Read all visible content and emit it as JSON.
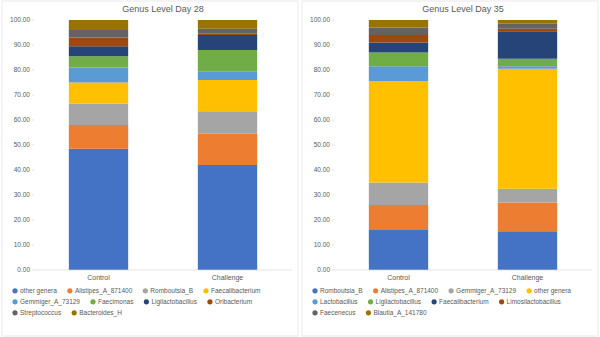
{
  "chart_data": [
    {
      "type": "bar",
      "title": "Genus Level Day 28",
      "stacked": true,
      "grid": false,
      "legend": "bottom",
      "categories": [
        "Control",
        "Challenge"
      ],
      "ylim": [
        0,
        100
      ],
      "yticks": [
        {
          "value": 0,
          "label": "0.00"
        },
        {
          "value": 10,
          "label": "10.00"
        },
        {
          "value": 20,
          "label": "20.00"
        },
        {
          "value": 30,
          "label": "30.00"
        },
        {
          "value": 40,
          "label": "40.00"
        },
        {
          "value": 50,
          "label": "50.00"
        },
        {
          "value": 60,
          "label": "60.00"
        },
        {
          "value": 70,
          "label": "70.00"
        },
        {
          "value": 80,
          "label": "80.00"
        },
        {
          "value": 90,
          "label": "90.00"
        },
        {
          "value": 100,
          "label": "100.00"
        }
      ],
      "series": [
        {
          "name": "other genera",
          "color": "#4472c4",
          "values": [
            48.5,
            42
          ]
        },
        {
          "name": "Alistipes_A_871400",
          "color": "#ed7d31",
          "values": [
            9.5,
            12.5
          ]
        },
        {
          "name": "Romboutsia_B",
          "color": "#a5a5a5",
          "values": [
            8.5,
            9
          ]
        },
        {
          "name": "Faecalibacterium",
          "color": "#ffc000",
          "values": [
            8.5,
            12.5
          ]
        },
        {
          "name": "Gemmiger_A_73129",
          "color": "#5b9bd5",
          "values": [
            6,
            3.5
          ]
        },
        {
          "name": "Faecimonas",
          "color": "#70ad47",
          "values": [
            4.5,
            8.5
          ]
        },
        {
          "name": "Ligilactobacillus",
          "color": "#264478",
          "values": [
            4,
            6
          ]
        },
        {
          "name": "Oribacterium",
          "color": "#9e480e",
          "values": [
            3.5,
            0.5
          ]
        },
        {
          "name": "Streptococcus",
          "color": "#636363",
          "values": [
            3,
            2
          ]
        },
        {
          "name": "Bacteroides_H",
          "color": "#997300",
          "values": [
            4,
            3.5
          ]
        }
      ]
    },
    {
      "type": "bar",
      "title": "Genus Level Day 35",
      "stacked": true,
      "grid": false,
      "legend": "bottom",
      "categories": [
        "Control",
        "Challenge"
      ],
      "ylim": [
        0,
        100
      ],
      "yticks": [
        {
          "value": 0,
          "label": "0.00"
        },
        {
          "value": 10,
          "label": "10.00"
        },
        {
          "value": 20,
          "label": "20.00"
        },
        {
          "value": 30,
          "label": "30.00"
        },
        {
          "value": 40,
          "label": "40.00"
        },
        {
          "value": 50,
          "label": "50.00"
        },
        {
          "value": 60,
          "label": "60.00"
        },
        {
          "value": 70,
          "label": "70.00"
        },
        {
          "value": 80,
          "label": "80.00"
        },
        {
          "value": 90,
          "label": "90.00"
        },
        {
          "value": 100,
          "label": "100.00"
        }
      ],
      "series": [
        {
          "name": "Romboutsia_B",
          "color": "#4472c4",
          "values": [
            16,
            15.5
          ]
        },
        {
          "name": "Alistipes_A_871400",
          "color": "#ed7d31",
          "values": [
            10,
            11.5
          ]
        },
        {
          "name": "Gemmiger_A_73129",
          "color": "#a5a5a5",
          "values": [
            9,
            5.5
          ]
        },
        {
          "name": "other genera",
          "color": "#ffc000",
          "values": [
            40.5,
            48
          ]
        },
        {
          "name": "Lactobacillus",
          "color": "#5b9bd5",
          "values": [
            6,
            1
          ]
        },
        {
          "name": "Ligilactobacillus",
          "color": "#70ad47",
          "values": [
            5.5,
            3
          ]
        },
        {
          "name": "Faecalibacterium",
          "color": "#264478",
          "values": [
            4,
            11
          ]
        },
        {
          "name": "Limosilactobacillus",
          "color": "#9e480e",
          "values": [
            3,
            1
          ]
        },
        {
          "name": "Faecenecus",
          "color": "#636363",
          "values": [
            3,
            2
          ]
        },
        {
          "name": "Blautia_A_141780",
          "color": "#997300",
          "values": [
            3,
            1.5
          ]
        }
      ]
    }
  ]
}
